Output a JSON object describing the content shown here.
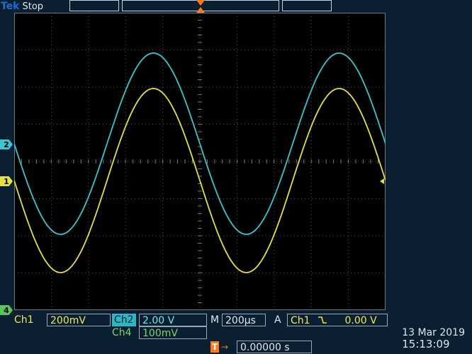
{
  "header": {
    "brand": "Tek",
    "status": "Stop",
    "trigger_position_glyph": "T"
  },
  "channels": {
    "ch2": {
      "marker": "2",
      "label": "Ch2",
      "scale": "2.00 V",
      "color": "#39c6cf"
    },
    "ch1": {
      "marker": "1",
      "label": "Ch1",
      "scale": "200mV",
      "color": "#e8e040"
    },
    "ch4": {
      "marker": "4",
      "label": "Ch4",
      "scale": "100mV",
      "color": "#57c85a"
    }
  },
  "timebase": {
    "label": "M",
    "value": "200µs"
  },
  "trigger": {
    "label": "A",
    "source": "Ch1",
    "slope_icon": "falling-edge-icon",
    "level": "0.00 V",
    "delay": "0.00000 s",
    "delay_icon": "trigger-delay-icon"
  },
  "datetime": {
    "date": "13 Mar 2019",
    "time": "15:13:09"
  },
  "colors": {
    "background": "#0b1f33",
    "screen": "#000000",
    "accent_orange": "#ff7a1a"
  }
}
